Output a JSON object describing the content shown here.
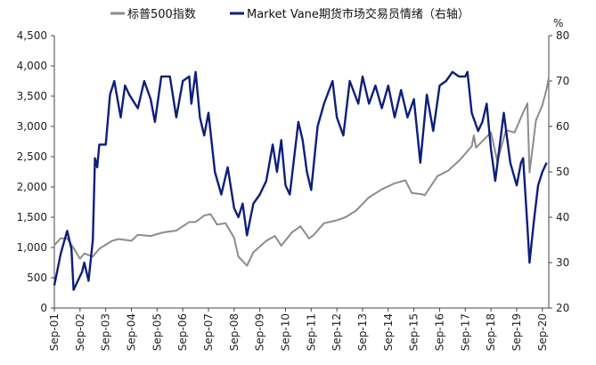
{
  "chart_data": {
    "type": "line",
    "title": "",
    "legend_position": "top",
    "grid": false,
    "colors": {
      "sp500": "#8c8c8c",
      "market_vane": "#0d1f7a"
    },
    "left_axis": {
      "range": [
        0,
        4500
      ],
      "ticks": [
        0,
        500,
        1000,
        1500,
        2000,
        2500,
        3000,
        3500,
        4000,
        4500
      ],
      "tick_labels": [
        "0",
        "500",
        "1,000",
        "1,500",
        "2,000",
        "2,500",
        "3,000",
        "3,500",
        "4,000",
        "4,500"
      ]
    },
    "right_axis": {
      "range": [
        20,
        80
      ],
      "ticks": [
        20,
        30,
        40,
        50,
        60,
        70,
        80
      ],
      "tick_labels": [
        "20",
        "30",
        "40",
        "50",
        "60",
        "70",
        "80"
      ],
      "unit_label": "%"
    },
    "x_axis": {
      "range": [
        "2001-09",
        "2020-12"
      ],
      "ticks": [
        "2001-09",
        "2002-09",
        "2003-09",
        "2004-09",
        "2005-09",
        "2006-09",
        "2007-09",
        "2008-09",
        "2009-09",
        "2010-09",
        "2011-09",
        "2012-09",
        "2013-09",
        "2014-09",
        "2015-09",
        "2016-09",
        "2017-09",
        "2018-09",
        "2019-09",
        "2020-09"
      ],
      "tick_labels": [
        "Sep-01",
        "Sep-02",
        "Sep-03",
        "Sep-04",
        "Sep-05",
        "Sep-06",
        "Sep-07",
        "Sep-08",
        "Sep-09",
        "Sep-10",
        "Sep-11",
        "Sep-12",
        "Sep-13",
        "Sep-14",
        "Sep-15",
        "Sep-16",
        "Sep-17",
        "Sep-18",
        "Sep-19",
        "Sep-20"
      ]
    },
    "series": [
      {
        "name": "标普500指数",
        "axis": "left",
        "points": [
          [
            "2001-09",
            1040
          ],
          [
            "2001-12",
            1150
          ],
          [
            "2002-03",
            1150
          ],
          [
            "2002-06",
            990
          ],
          [
            "2002-09",
            815
          ],
          [
            "2002-11",
            900
          ],
          [
            "2003-03",
            850
          ],
          [
            "2003-06",
            980
          ],
          [
            "2003-12",
            1110
          ],
          [
            "2004-03",
            1140
          ],
          [
            "2004-09",
            1110
          ],
          [
            "2004-12",
            1210
          ],
          [
            "2005-06",
            1190
          ],
          [
            "2005-12",
            1250
          ],
          [
            "2006-06",
            1280
          ],
          [
            "2006-12",
            1420
          ],
          [
            "2007-03",
            1420
          ],
          [
            "2007-07",
            1530
          ],
          [
            "2007-10",
            1550
          ],
          [
            "2008-01",
            1380
          ],
          [
            "2008-05",
            1400
          ],
          [
            "2008-09",
            1160
          ],
          [
            "2008-11",
            850
          ],
          [
            "2009-03",
            700
          ],
          [
            "2009-06",
            920
          ],
          [
            "2009-12",
            1110
          ],
          [
            "2010-04",
            1190
          ],
          [
            "2010-07",
            1030
          ],
          [
            "2010-12",
            1250
          ],
          [
            "2011-04",
            1350
          ],
          [
            "2011-08",
            1150
          ],
          [
            "2011-10",
            1200
          ],
          [
            "2012-03",
            1400
          ],
          [
            "2012-09",
            1450
          ],
          [
            "2013-01",
            1500
          ],
          [
            "2013-06",
            1610
          ],
          [
            "2013-12",
            1830
          ],
          [
            "2014-06",
            1960
          ],
          [
            "2014-12",
            2060
          ],
          [
            "2015-05",
            2110
          ],
          [
            "2015-08",
            1900
          ],
          [
            "2016-01",
            1880
          ],
          [
            "2016-02",
            1860
          ],
          [
            "2016-08",
            2180
          ],
          [
            "2017-01",
            2270
          ],
          [
            "2017-06",
            2430
          ],
          [
            "2017-12",
            2670
          ],
          [
            "2018-01",
            2850
          ],
          [
            "2018-02",
            2650
          ],
          [
            "2018-09",
            2900
          ],
          [
            "2018-12",
            2420
          ],
          [
            "2019-04",
            2940
          ],
          [
            "2019-08",
            2900
          ],
          [
            "2019-12",
            3230
          ],
          [
            "2020-02",
            3380
          ],
          [
            "2020-03",
            2240
          ],
          [
            "2020-06",
            3100
          ],
          [
            "2020-09",
            3350
          ],
          [
            "2020-11",
            3620
          ],
          [
            "2020-12",
            3800
          ]
        ]
      },
      {
        "name": "Market Vane期货市场交易员情绪（右轴）",
        "axis": "right",
        "points": [
          [
            "2001-09",
            25
          ],
          [
            "2001-12",
            32
          ],
          [
            "2002-03",
            37
          ],
          [
            "2002-05",
            33
          ],
          [
            "2002-06",
            24
          ],
          [
            "2002-08",
            26
          ],
          [
            "2002-10",
            28
          ],
          [
            "2002-11",
            30
          ],
          [
            "2003-01",
            26
          ],
          [
            "2003-03",
            35
          ],
          [
            "2003-04",
            53
          ],
          [
            "2003-05",
            51
          ],
          [
            "2003-06",
            56
          ],
          [
            "2003-09",
            56
          ],
          [
            "2003-11",
            67
          ],
          [
            "2004-01",
            70
          ],
          [
            "2004-04",
            62
          ],
          [
            "2004-06",
            69
          ],
          [
            "2004-08",
            67
          ],
          [
            "2004-12",
            64
          ],
          [
            "2005-03",
            70
          ],
          [
            "2005-06",
            66
          ],
          [
            "2005-08",
            61
          ],
          [
            "2005-11",
            71
          ],
          [
            "2006-03",
            71
          ],
          [
            "2006-06",
            62
          ],
          [
            "2006-09",
            70
          ],
          [
            "2006-12",
            71
          ],
          [
            "2007-01",
            65
          ],
          [
            "2007-03",
            72
          ],
          [
            "2007-05",
            62
          ],
          [
            "2007-07",
            58
          ],
          [
            "2007-09",
            63
          ],
          [
            "2007-12",
            50
          ],
          [
            "2008-03",
            45
          ],
          [
            "2008-06",
            51
          ],
          [
            "2008-09",
            42
          ],
          [
            "2008-11",
            40
          ],
          [
            "2009-01",
            43
          ],
          [
            "2009-03",
            36
          ],
          [
            "2009-06",
            43
          ],
          [
            "2009-09",
            45
          ],
          [
            "2009-12",
            48
          ],
          [
            "2010-03",
            56
          ],
          [
            "2010-05",
            50
          ],
          [
            "2010-07",
            57
          ],
          [
            "2010-09",
            47
          ],
          [
            "2010-11",
            45
          ],
          [
            "2011-03",
            61
          ],
          [
            "2011-05",
            57
          ],
          [
            "2011-07",
            50
          ],
          [
            "2011-09",
            46
          ],
          [
            "2011-12",
            60
          ],
          [
            "2012-03",
            65
          ],
          [
            "2012-07",
            70
          ],
          [
            "2012-09",
            62
          ],
          [
            "2012-12",
            58
          ],
          [
            "2013-03",
            70
          ],
          [
            "2013-07",
            65
          ],
          [
            "2013-09",
            71
          ],
          [
            "2013-12",
            65
          ],
          [
            "2014-03",
            69
          ],
          [
            "2014-06",
            64
          ],
          [
            "2014-09",
            69
          ],
          [
            "2014-12",
            62
          ],
          [
            "2015-03",
            68
          ],
          [
            "2015-06",
            62
          ],
          [
            "2015-09",
            66
          ],
          [
            "2015-12",
            52
          ],
          [
            "2016-03",
            67
          ],
          [
            "2016-06",
            59
          ],
          [
            "2016-09",
            69
          ],
          [
            "2016-12",
            70
          ],
          [
            "2017-03",
            72
          ],
          [
            "2017-06",
            71
          ],
          [
            "2017-09",
            71
          ],
          [
            "2017-10",
            72
          ],
          [
            "2017-12",
            63
          ],
          [
            "2018-03",
            59
          ],
          [
            "2018-05",
            61
          ],
          [
            "2018-07",
            65
          ],
          [
            "2018-09",
            55
          ],
          [
            "2018-11",
            48
          ],
          [
            "2019-03",
            63
          ],
          [
            "2019-06",
            52
          ],
          [
            "2019-09",
            47
          ],
          [
            "2019-11",
            52
          ],
          [
            "2019-12",
            53
          ],
          [
            "2020-02",
            38
          ],
          [
            "2020-03",
            30
          ],
          [
            "2020-05",
            39
          ],
          [
            "2020-07",
            47
          ],
          [
            "2020-09",
            50
          ],
          [
            "2020-11",
            52
          ]
        ]
      }
    ]
  }
}
